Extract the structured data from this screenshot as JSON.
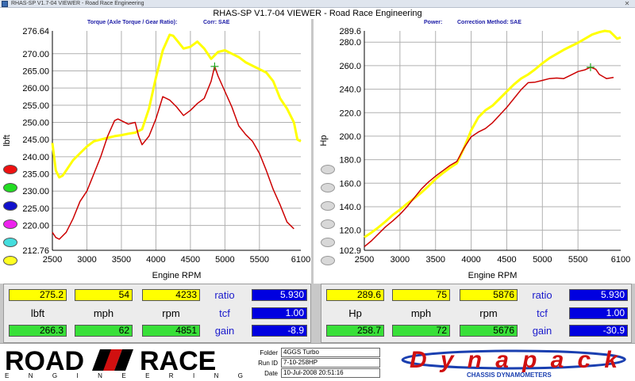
{
  "window": {
    "title": "RHAS-SP V1.7-04  VIEWER - Road Race Engineering",
    "close": "✕"
  },
  "app_title": "RHAS-SP V1.7-04  VIEWER - Road Race Engineering",
  "chart_data": [
    {
      "type": "line",
      "subtitle": "Torque (Axle Torque / Gear Ratio):",
      "correction": "Corr: SAE",
      "xlabel": "Engine RPM",
      "ylabel": "lbft",
      "xlim": [
        2500,
        6100
      ],
      "ylim": [
        212.76,
        276.64
      ],
      "x_ticks": [
        2500,
        3000,
        3500,
        4000,
        4500,
        5000,
        5500,
        6100
      ],
      "y_ticks": [
        212.76,
        220.0,
        225.0,
        230.0,
        235.0,
        240.0,
        245.0,
        250.0,
        255.0,
        260.0,
        265.0,
        270.0,
        276.64
      ],
      "y_tick_labels": [
        "212.76",
        "220.00",
        "225.00",
        "230.00",
        "235.00",
        "240.00",
        "245.00",
        "250.00",
        "255.00",
        "260.00",
        "265.00",
        "270.00",
        "276.64"
      ],
      "grid": true,
      "series": [
        {
          "color": "#ffff00",
          "x": [
            2500,
            2550,
            2600,
            2650,
            2700,
            2800,
            2900,
            3000,
            3100,
            3200,
            3300,
            3400,
            3500,
            3600,
            3700,
            3800,
            3900,
            4000,
            4100,
            4200,
            4250,
            4300,
            4400,
            4500,
            4600,
            4700,
            4800,
            4900,
            5000,
            5100,
            5200,
            5300,
            5400,
            5500,
            5600,
            5700,
            5800,
            5900,
            6000,
            6050,
            6100
          ],
          "values": [
            244.0,
            236.0,
            234.0,
            234.5,
            236.0,
            239.0,
            241.0,
            243.0,
            244.5,
            245.0,
            245.5,
            246.0,
            246.3,
            246.7,
            247.0,
            248.0,
            254.0,
            263.0,
            271.0,
            275.5,
            275.2,
            274.0,
            271.5,
            272.0,
            273.5,
            271.5,
            268.5,
            270.5,
            271.0,
            270.0,
            269.0,
            267.5,
            266.5,
            265.5,
            264.5,
            262.0,
            257.0,
            254.0,
            250.0,
            245.0,
            244.5
          ]
        },
        {
          "color": "#cc0000",
          "x": [
            2500,
            2550,
            2600,
            2700,
            2800,
            2900,
            3000,
            3100,
            3200,
            3300,
            3400,
            3450,
            3500,
            3600,
            3700,
            3750,
            3800,
            3900,
            4000,
            4100,
            4200,
            4300,
            4400,
            4500,
            4600,
            4700,
            4800,
            4851,
            4900,
            5000,
            5100,
            5200,
            5300,
            5400,
            5500,
            5600,
            5700,
            5800,
            5900,
            6000
          ],
          "values": [
            218.0,
            216.5,
            216.0,
            218.0,
            222.0,
            227.0,
            230.0,
            235.0,
            240.0,
            246.0,
            250.5,
            251.0,
            250.5,
            249.5,
            250.0,
            246.0,
            243.5,
            246.0,
            251.0,
            257.5,
            256.5,
            254.5,
            252.0,
            253.5,
            255.5,
            257.0,
            262.0,
            266.3,
            263.5,
            259.0,
            254.5,
            249.0,
            246.5,
            244.5,
            241.0,
            236.0,
            230.5,
            226.0,
            221.0,
            219.0
          ]
        }
      ],
      "marker": {
        "x": 4851,
        "y": 266.3,
        "color": "#22aa22"
      }
    },
    {
      "type": "line",
      "subtitle": "Power:",
      "correction": "Correction Method: SAE",
      "xlabel": "Engine RPM",
      "ylabel": "Hp",
      "xlim": [
        2500,
        6100
      ],
      "ylim": [
        102.9,
        289.6
      ],
      "x_ticks": [
        2500,
        3000,
        3500,
        4000,
        4500,
        5000,
        5500,
        6100
      ],
      "y_ticks": [
        102.9,
        120.0,
        140.0,
        160.0,
        180.0,
        200.0,
        220.0,
        240.0,
        260.0,
        280.0,
        289.6
      ],
      "y_tick_labels": [
        "102.9",
        "120.0",
        "140.0",
        "160.0",
        "180.0",
        "200.0",
        "220.0",
        "240.0",
        "260.0",
        "280.0",
        "289.6"
      ],
      "grid": true,
      "series": [
        {
          "color": "#ffff00",
          "x": [
            2500,
            2600,
            2700,
            2800,
            2900,
            3000,
            3100,
            3200,
            3300,
            3400,
            3500,
            3600,
            3700,
            3800,
            3900,
            4000,
            4100,
            4200,
            4300,
            4400,
            4500,
            4600,
            4700,
            4800,
            4900,
            5000,
            5100,
            5200,
            5300,
            5400,
            5500,
            5600,
            5700,
            5800,
            5876,
            5950,
            6000,
            6050,
            6100
          ],
          "values": [
            114.0,
            118.0,
            122.5,
            127.5,
            133.0,
            137.5,
            142.5,
            147.0,
            152.0,
            157.5,
            163.5,
            168.5,
            173.0,
            177.0,
            190.0,
            205.0,
            216.0,
            222.0,
            226.0,
            232.0,
            238.0,
            244.0,
            249.0,
            252.5,
            257.0,
            262.0,
            266.5,
            270.0,
            273.5,
            276.5,
            279.5,
            283.0,
            286.5,
            288.5,
            289.6,
            289.0,
            286.0,
            283.0,
            284.0
          ]
        },
        {
          "color": "#cc0000",
          "x": [
            2500,
            2600,
            2700,
            2800,
            2900,
            3000,
            3100,
            3200,
            3300,
            3400,
            3500,
            3600,
            3700,
            3800,
            3900,
            4000,
            4100,
            4200,
            4300,
            4400,
            4500,
            4600,
            4700,
            4800,
            4900,
            5000,
            5100,
            5200,
            5300,
            5400,
            5500,
            5600,
            5676,
            5750,
            5800,
            5900,
            6000
          ],
          "values": [
            106.0,
            111.0,
            117.0,
            123.0,
            128.0,
            133.5,
            140.0,
            147.5,
            155.0,
            161.0,
            166.0,
            170.5,
            175.0,
            178.5,
            190.0,
            199.5,
            203.5,
            206.5,
            211.5,
            218.0,
            224.5,
            232.0,
            239.5,
            245.5,
            246.0,
            247.5,
            249.0,
            249.5,
            249.0,
            252.0,
            255.0,
            256.5,
            258.7,
            257.0,
            252.5,
            249.0,
            250.0
          ]
        }
      ],
      "marker": {
        "x": 5676,
        "y": 258.7,
        "color": "#22aa22"
      }
    }
  ],
  "swatches": [
    "#ee1111",
    "#22dd22",
    "#1111cc",
    "#ee22ee",
    "#44dddd",
    "#ffff22"
  ],
  "readouts": {
    "left": {
      "top": {
        "v1": "275.2",
        "v2": "54",
        "v3": "4233",
        "ratio": "5.930"
      },
      "labels": {
        "a": "lbft",
        "b": "mph",
        "c": "rpm",
        "ratio": "ratio",
        "tcf": "tcf",
        "gain": "gain"
      },
      "tcf_value": "1.00",
      "bottom": {
        "v1": "266.3",
        "v2": "62",
        "v3": "4851",
        "gain": "-8.9"
      }
    },
    "right": {
      "top": {
        "v1": "289.6",
        "v2": "75",
        "v3": "5876",
        "ratio": "5.930"
      },
      "labels": {
        "a": "Hp",
        "b": "mph",
        "c": "rpm",
        "ratio": "ratio",
        "tcf": "tcf",
        "gain": "gain"
      },
      "tcf_value": "1.00",
      "bottom": {
        "v1": "258.7",
        "v2": "72",
        "v3": "5676",
        "gain": "-30.9"
      }
    }
  },
  "footer": {
    "rr_logo": {
      "road": "ROAD",
      "race": "RACE",
      "sub": "E N G I N E E R I N G"
    },
    "info": {
      "folder_label": "Folder",
      "folder": "4GGS Turbo",
      "runid_label": "Run ID",
      "runid": "7-10-258HP",
      "date_label": "Date",
      "date": "10-Jul-2008  20:51:16"
    },
    "dynapack": {
      "name": "Dynapack",
      "tagline": "CHASSIS DYNAMOMETERS"
    }
  }
}
